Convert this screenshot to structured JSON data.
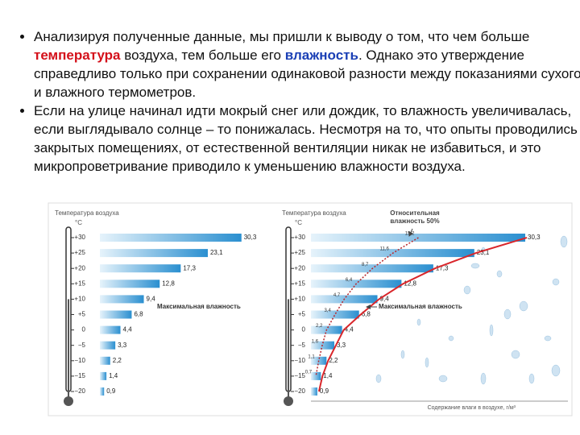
{
  "paragraphs": [
    {
      "runs": [
        "Анализируя полученные данные, мы пришли к выводу о том, что чем больше ",
        "температура",
        " воздуха, тем больше его ",
        "влажность",
        ". Однако это утверждение справедливо только при сохранении одинаковой разности между показаниями сухого и влажного термометров."
      ]
    },
    {
      "runs": [
        "Если на улице начинал идти мокрый снег или дождик, то влажность увеличивалась, если выглядывало солнце – то понижалась. Несмотря на то, что опыты проводились в закрытых помещениях, от естественной вентиляции никак не избавиться, и это микропроветривание приводило к уменьшению влажности воздуха."
      ]
    }
  ],
  "chart_data": [
    {
      "type": "bar",
      "orientation": "horizontal",
      "title": "Температура воздуха",
      "unit": "°С",
      "categories": [
        "+30",
        "+25",
        "+20",
        "+15",
        "+10",
        "+5",
        "0",
        "−5",
        "−10",
        "−15",
        "−20"
      ],
      "series": [
        {
          "name": "Максимальная влажность",
          "color": "#2a8fd0",
          "values": [
            30.3,
            23.1,
            17.3,
            12.8,
            9.4,
            6.8,
            4.4,
            3.3,
            2.2,
            1.4,
            0.9
          ],
          "value_labels": [
            "30,3",
            "23,1",
            "17,3",
            "12,8",
            "9,4",
            "6,8",
            "4,4",
            "3,3",
            "2,2",
            "1,4",
            "0,9"
          ]
        }
      ]
    },
    {
      "type": "bar",
      "orientation": "horizontal",
      "title": "Температура воздуха",
      "unit": "°С",
      "x_label": "Содержание влаги в воздухе, г/м³",
      "categories": [
        "+30",
        "+25",
        "+20",
        "+15",
        "+10",
        "+5",
        "0",
        "−5",
        "−10",
        "−15",
        "−20"
      ],
      "series": [
        {
          "name": "Максимальная влажность",
          "color": "#2a8fd0",
          "curve_color": "#d9262b",
          "values": [
            30.3,
            23.1,
            17.3,
            12.8,
            9.4,
            6.8,
            4.4,
            3.3,
            2.2,
            1.4,
            0.9
          ],
          "value_labels": [
            "30,3",
            "23,1",
            "17,3",
            "12,8",
            "9,4",
            "6,8",
            "4,4",
            "3,3",
            "2,2",
            "1,4",
            "0,9"
          ]
        },
        {
          "name": "Относительная влажность 50%",
          "type": "line",
          "color": "#b8262b",
          "values": [
            15.2,
            11.6,
            8.7,
            6.4,
            4.7,
            3.4,
            2.2,
            1.6,
            1.1,
            0.7,
            null
          ],
          "value_labels": [
            "15,2",
            "11,6",
            "8,7",
            "6,4",
            "4,7",
            "3,4",
            "2,2",
            "1,6",
            "1,1",
            "0,7",
            null
          ]
        }
      ]
    }
  ]
}
